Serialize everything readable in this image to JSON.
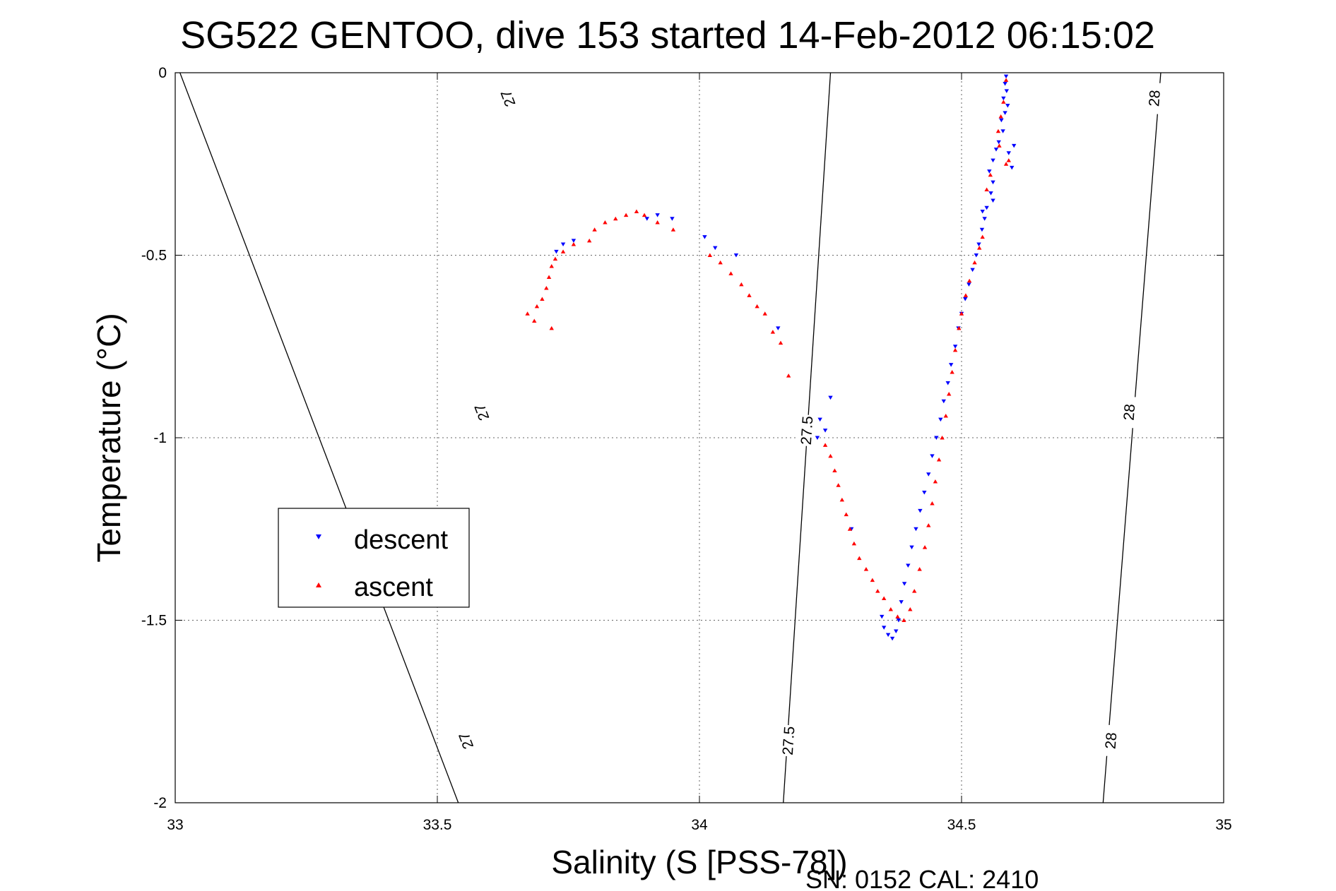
{
  "chart_data": {
    "type": "scatter",
    "title": "SG522 GENTOO, dive 153 started 14-Feb-2012 06:15:02",
    "xlabel": "Salinity (S [PSS-78])",
    "ylabel": "Temperature (°C)",
    "xlim": [
      33,
      35
    ],
    "ylim": [
      -2,
      0
    ],
    "xticks": [
      "33",
      "33.5",
      "34",
      "34.5",
      "35"
    ],
    "yticks": [
      "0",
      "-0.5",
      "-1",
      "-1.5",
      "-2"
    ],
    "grid": true,
    "legend_position": "center-left",
    "footer": "SN: 0152  CAL: 2410",
    "density_contours": [
      {
        "label": "27",
        "points": [
          [
            33.009,
            0
          ],
          [
            33.54,
            -2
          ]
        ],
        "label_positions": [
          [
            33.635,
            -0.07
          ],
          [
            33.585,
            -0.93
          ],
          [
            33.555,
            -1.83
          ]
        ]
      },
      {
        "label": "27.5",
        "points": [
          [
            34.25,
            0
          ],
          [
            34.16,
            -2
          ]
        ],
        "label_positions": [
          [
            34.205,
            -0.98
          ],
          [
            34.17,
            -1.83
          ]
        ]
      },
      {
        "label": "28",
        "points": [
          [
            34.88,
            0
          ],
          [
            34.77,
            -2
          ]
        ],
        "label_positions": [
          [
            34.868,
            -0.07
          ],
          [
            34.82,
            -0.93
          ],
          [
            34.785,
            -1.83
          ]
        ]
      }
    ],
    "series": [
      {
        "name": "descent",
        "marker": "down-triangle",
        "color": "#0000ff",
        "points": [
          [
            34.585,
            -0.01
          ],
          [
            34.583,
            -0.03
          ],
          [
            34.586,
            -0.05
          ],
          [
            34.58,
            -0.07
          ],
          [
            34.588,
            -0.09
          ],
          [
            34.583,
            -0.11
          ],
          [
            34.576,
            -0.13
          ],
          [
            34.579,
            -0.16
          ],
          [
            34.571,
            -0.19
          ],
          [
            34.566,
            -0.21
          ],
          [
            34.56,
            -0.24
          ],
          [
            34.553,
            -0.27
          ],
          [
            34.56,
            -0.3
          ],
          [
            34.556,
            -0.33
          ],
          [
            34.548,
            -0.37
          ],
          [
            34.544,
            -0.4
          ],
          [
            34.539,
            -0.43
          ],
          [
            34.533,
            -0.47
          ],
          [
            34.528,
            -0.5
          ],
          [
            34.521,
            -0.54
          ],
          [
            34.514,
            -0.58
          ],
          [
            34.507,
            -0.62
          ],
          [
            34.5,
            -0.66
          ],
          [
            34.494,
            -0.7
          ],
          [
            34.488,
            -0.75
          ],
          [
            34.48,
            -0.8
          ],
          [
            34.474,
            -0.85
          ],
          [
            34.466,
            -0.9
          ],
          [
            34.46,
            -0.95
          ],
          [
            34.452,
            -1.0
          ],
          [
            34.444,
            -1.05
          ],
          [
            34.437,
            -1.1
          ],
          [
            34.429,
            -1.15
          ],
          [
            34.421,
            -1.2
          ],
          [
            34.413,
            -1.25
          ],
          [
            34.405,
            -1.3
          ],
          [
            34.398,
            -1.35
          ],
          [
            34.391,
            -1.4
          ],
          [
            34.385,
            -1.45
          ],
          [
            34.38,
            -1.5
          ],
          [
            34.375,
            -1.53
          ],
          [
            34.368,
            -1.55
          ],
          [
            34.36,
            -1.54
          ],
          [
            34.352,
            -1.52
          ],
          [
            34.348,
            -1.49
          ],
          [
            34.6,
            -0.2
          ],
          [
            34.596,
            -0.26
          ],
          [
            34.59,
            -0.22
          ],
          [
            34.56,
            -0.35
          ],
          [
            34.54,
            -0.38
          ],
          [
            33.948,
            -0.4
          ],
          [
            33.92,
            -0.39
          ],
          [
            33.9,
            -0.4
          ],
          [
            33.76,
            -0.46
          ],
          [
            33.74,
            -0.47
          ],
          [
            33.727,
            -0.49
          ],
          [
            34.01,
            -0.45
          ],
          [
            34.03,
            -0.48
          ],
          [
            34.07,
            -0.5
          ],
          [
            34.15,
            -0.7
          ],
          [
            34.23,
            -0.95
          ],
          [
            34.25,
            -0.89
          ],
          [
            34.24,
            -0.98
          ],
          [
            34.225,
            -1.0
          ],
          [
            34.29,
            -1.25
          ]
        ]
      },
      {
        "name": "ascent",
        "marker": "up-triangle",
        "color": "#ff0000",
        "points": [
          [
            34.585,
            -0.02
          ],
          [
            34.58,
            -0.08
          ],
          [
            34.575,
            -0.12
          ],
          [
            34.57,
            -0.16
          ],
          [
            34.572,
            -0.2
          ],
          [
            34.59,
            -0.24
          ],
          [
            34.585,
            -0.25
          ],
          [
            34.555,
            -0.28
          ],
          [
            34.548,
            -0.32
          ],
          [
            34.54,
            -0.45
          ],
          [
            34.534,
            -0.48
          ],
          [
            34.525,
            -0.52
          ],
          [
            34.515,
            -0.57
          ],
          [
            34.508,
            -0.61
          ],
          [
            34.5,
            -0.66
          ],
          [
            34.495,
            -0.7
          ],
          [
            34.488,
            -0.76
          ],
          [
            34.482,
            -0.82
          ],
          [
            34.476,
            -0.88
          ],
          [
            34.47,
            -0.94
          ],
          [
            34.463,
            -1.0
          ],
          [
            34.457,
            -1.06
          ],
          [
            34.45,
            -1.12
          ],
          [
            34.444,
            -1.18
          ],
          [
            34.437,
            -1.24
          ],
          [
            34.43,
            -1.3
          ],
          [
            34.42,
            -1.36
          ],
          [
            34.41,
            -1.42
          ],
          [
            34.402,
            -1.47
          ],
          [
            34.39,
            -1.5
          ],
          [
            34.378,
            -1.49
          ],
          [
            34.365,
            -1.47
          ],
          [
            34.352,
            -1.44
          ],
          [
            34.34,
            -1.42
          ],
          [
            34.33,
            -1.39
          ],
          [
            34.318,
            -1.36
          ],
          [
            34.305,
            -1.33
          ],
          [
            34.295,
            -1.29
          ],
          [
            34.287,
            -1.25
          ],
          [
            34.28,
            -1.21
          ],
          [
            34.272,
            -1.17
          ],
          [
            34.265,
            -1.13
          ],
          [
            34.258,
            -1.09
          ],
          [
            34.25,
            -1.05
          ],
          [
            34.24,
            -1.02
          ],
          [
            34.17,
            -0.83
          ],
          [
            34.155,
            -0.74
          ],
          [
            34.14,
            -0.71
          ],
          [
            34.125,
            -0.66
          ],
          [
            34.11,
            -0.64
          ],
          [
            34.095,
            -0.61
          ],
          [
            34.08,
            -0.58
          ],
          [
            34.06,
            -0.55
          ],
          [
            34.04,
            -0.52
          ],
          [
            34.02,
            -0.5
          ],
          [
            33.95,
            -0.43
          ],
          [
            33.92,
            -0.41
          ],
          [
            33.895,
            -0.39
          ],
          [
            33.88,
            -0.38
          ],
          [
            33.86,
            -0.39
          ],
          [
            33.84,
            -0.4
          ],
          [
            33.82,
            -0.41
          ],
          [
            33.8,
            -0.43
          ],
          [
            33.79,
            -0.46
          ],
          [
            33.76,
            -0.47
          ],
          [
            33.74,
            -0.49
          ],
          [
            33.725,
            -0.51
          ],
          [
            33.718,
            -0.53
          ],
          [
            33.713,
            -0.56
          ],
          [
            33.708,
            -0.59
          ],
          [
            33.7,
            -0.62
          ],
          [
            33.69,
            -0.64
          ],
          [
            33.685,
            -0.68
          ],
          [
            33.672,
            -0.66
          ],
          [
            33.718,
            -0.7
          ]
        ]
      }
    ]
  }
}
